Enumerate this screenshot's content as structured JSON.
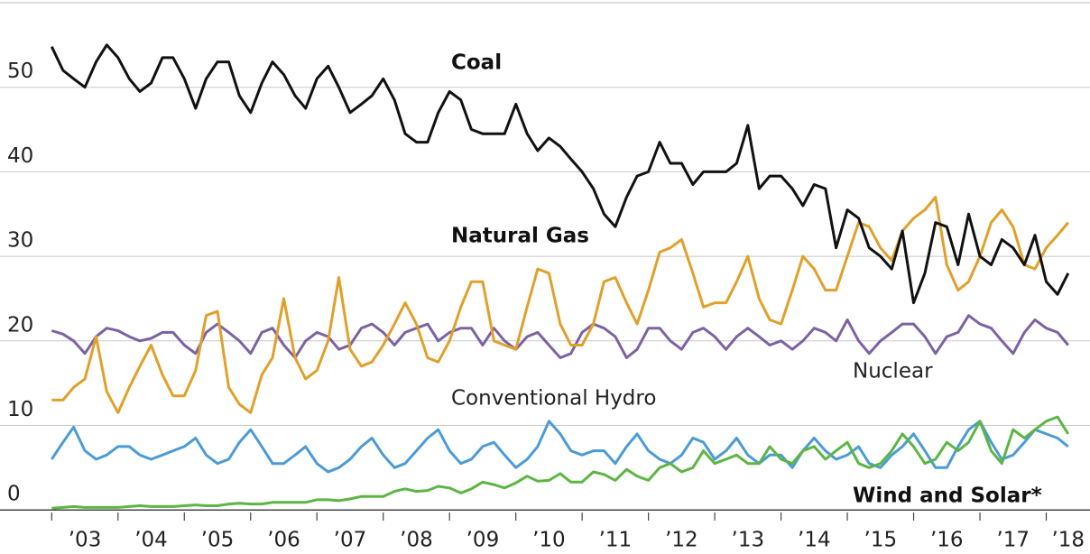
{
  "chart_data": {
    "type": "line",
    "x": [
      2003,
      2003.17,
      2003.33,
      2003.5,
      2003.67,
      2003.83,
      2004,
      2004.17,
      2004.33,
      2004.5,
      2004.67,
      2004.83,
      2005,
      2005.17,
      2005.33,
      2005.5,
      2005.67,
      2005.83,
      2006,
      2006.17,
      2006.33,
      2006.5,
      2006.67,
      2006.83,
      2007,
      2007.17,
      2007.33,
      2007.5,
      2007.67,
      2007.83,
      2008,
      2008.17,
      2008.33,
      2008.5,
      2008.67,
      2008.83,
      2009,
      2009.17,
      2009.33,
      2009.5,
      2009.67,
      2009.83,
      2010,
      2010.17,
      2010.33,
      2010.5,
      2010.67,
      2010.83,
      2011,
      2011.17,
      2011.33,
      2011.5,
      2011.67,
      2011.83,
      2012,
      2012.17,
      2012.33,
      2012.5,
      2012.67,
      2012.83,
      2013,
      2013.17,
      2013.33,
      2013.5,
      2013.67,
      2013.83,
      2014,
      2014.17,
      2014.33,
      2014.5,
      2014.67,
      2014.83,
      2015,
      2015.17,
      2015.33,
      2015.5,
      2015.67,
      2015.83,
      2016,
      2016.17,
      2016.33,
      2016.5,
      2016.67,
      2016.83,
      2017,
      2017.17,
      2017.33,
      2017.5,
      2017.67,
      2017.83,
      2018,
      2018.17,
      2018.33
    ],
    "series": [
      {
        "name": "Coal",
        "color": "#111111",
        "values": [
          54.8,
          52,
          51,
          50,
          53,
          55,
          53.5,
          51,
          49.5,
          50.5,
          53.5,
          53.5,
          51,
          47.5,
          51,
          53,
          53,
          49,
          47,
          50.5,
          53,
          51.5,
          49,
          47.5,
          51,
          52.5,
          50,
          47,
          48,
          49,
          51,
          48.5,
          44.5,
          43.5,
          43.5,
          47,
          49.5,
          48.5,
          45,
          44.5,
          44.5,
          44.5,
          48,
          44.5,
          42.5,
          44,
          43,
          41.5,
          40,
          38,
          35,
          33.5,
          37,
          39.5,
          40,
          43.5,
          41,
          41,
          38.5,
          40,
          40,
          40,
          41,
          45.5,
          38,
          39.5,
          39.5,
          38,
          36,
          38.5,
          38,
          31,
          35.5,
          34.5,
          31,
          30,
          28.5,
          33,
          24.5,
          28,
          34,
          33.5,
          29,
          35,
          30,
          29,
          32,
          31,
          29,
          32.5,
          27,
          25.5,
          28
        ]
      },
      {
        "name": "Natural Gas",
        "color": "#e0a02a",
        "values": [
          13,
          13,
          14.5,
          15.5,
          20.5,
          14,
          11.5,
          14.5,
          17,
          19.5,
          16,
          13.5,
          13.5,
          16.5,
          23,
          23.5,
          14.5,
          12.5,
          11.5,
          16,
          18,
          25,
          18,
          15.5,
          16.5,
          20,
          27.5,
          19,
          17,
          17.5,
          19.5,
          22,
          24.5,
          22,
          18,
          17.5,
          20,
          24,
          27,
          27,
          20,
          19.5,
          19,
          24,
          28.5,
          28,
          22,
          19.5,
          19.5,
          22,
          27,
          27.5,
          24.5,
          22,
          26,
          30.5,
          31,
          32,
          28,
          24,
          24.5,
          24.5,
          27,
          30,
          25,
          22.5,
          22,
          26,
          30,
          28.5,
          26,
          26,
          30,
          34,
          33.5,
          31,
          29.5,
          33,
          34.5,
          35.5,
          37,
          29,
          26,
          27,
          30,
          34,
          35.5,
          33.5,
          29,
          28.5,
          31,
          32.5,
          34
        ]
      },
      {
        "name": "Nuclear",
        "color": "#7b62a3",
        "values": [
          21.2,
          20.8,
          20,
          18.5,
          20.5,
          21.5,
          21.2,
          20.5,
          20,
          20.3,
          21,
          21,
          19.5,
          18.5,
          21,
          22,
          21,
          20,
          18.5,
          21,
          21.5,
          19.5,
          18,
          20,
          21,
          20.5,
          19,
          19.5,
          21.5,
          22,
          21,
          19.5,
          21,
          21.5,
          22,
          20,
          21,
          21.5,
          21.5,
          19.5,
          21.5,
          20,
          19,
          20.5,
          21,
          19.5,
          18,
          18.5,
          21,
          22,
          21.5,
          20.5,
          18,
          19,
          21.5,
          21.5,
          20,
          19,
          21,
          21.5,
          20.5,
          19,
          20.5,
          21.5,
          20.5,
          19.5,
          20,
          19,
          20,
          21.5,
          21,
          20,
          22.5,
          20,
          18.5,
          20,
          21,
          22,
          22,
          20.5,
          18.5,
          20.5,
          21,
          23,
          22,
          21.5,
          20,
          18.5,
          21,
          22.5,
          21.5,
          21,
          19.5
        ]
      },
      {
        "name": "Conventional Hydro",
        "color": "#4b9bd5",
        "values": [
          6,
          8,
          9.8,
          7,
          6,
          6.5,
          7.5,
          7.5,
          6.5,
          6,
          6.5,
          7,
          7.5,
          8.5,
          6.5,
          5.5,
          6,
          8,
          9.5,
          7.5,
          5.5,
          5.5,
          6.5,
          7.5,
          5.5,
          4.5,
          5,
          6,
          7.5,
          8.5,
          6.5,
          5,
          5.5,
          7,
          8.5,
          9.5,
          7,
          5.5,
          6,
          7.5,
          8,
          6.5,
          5,
          6,
          7.5,
          10.5,
          9,
          7,
          6.5,
          7,
          7,
          5.5,
          7.5,
          9,
          7,
          6,
          5.5,
          6.5,
          8.5,
          8,
          6,
          7,
          8.5,
          6.5,
          5.5,
          6.5,
          6.5,
          5,
          7,
          8.5,
          7,
          6,
          6.5,
          7.5,
          5.5,
          5,
          6.5,
          7.5,
          9,
          7,
          5,
          5,
          7.5,
          9.5,
          10.5,
          8,
          6,
          6.5,
          8,
          9.5,
          9,
          8.5,
          7.5
        ]
      },
      {
        "name": "Wind and Solar*",
        "color": "#5db544",
        "values": [
          0.2,
          0.3,
          0.4,
          0.3,
          0.3,
          0.3,
          0.3,
          0.4,
          0.5,
          0.4,
          0.4,
          0.4,
          0.5,
          0.6,
          0.5,
          0.5,
          0.7,
          0.8,
          0.7,
          0.7,
          0.9,
          0.9,
          0.9,
          0.9,
          1.2,
          1.2,
          1.1,
          1.3,
          1.6,
          1.6,
          1.6,
          2.2,
          2.5,
          2.2,
          2.3,
          2.8,
          2.6,
          2,
          2.5,
          3.3,
          3,
          2.6,
          3.2,
          4,
          3.4,
          3.5,
          4.3,
          3.3,
          3.3,
          4.5,
          4.2,
          3.5,
          4.8,
          4,
          3.5,
          5,
          5.5,
          4.5,
          5,
          7,
          5.5,
          6,
          6.5,
          5.5,
          5.5,
          7.5,
          6,
          5.5,
          7,
          7.5,
          6,
          7,
          8,
          5.5,
          5,
          5.5,
          7,
          9,
          7.5,
          5.5,
          6,
          8,
          7,
          8,
          10.5,
          7,
          5.5,
          9.5,
          8.5,
          9.5,
          10.5,
          11,
          9
        ]
      }
    ],
    "xlim": [
      2002.22,
      2018.66
    ],
    "xticks": [
      {
        "value": 2003,
        "label": "’03"
      },
      {
        "value": 2004,
        "label": "’04"
      },
      {
        "value": 2005,
        "label": "’05"
      },
      {
        "value": 2006,
        "label": "’06"
      },
      {
        "value": 2007,
        "label": "’07"
      },
      {
        "value": 2008,
        "label": "’08"
      },
      {
        "value": 2009,
        "label": "’09"
      },
      {
        "value": 2010,
        "label": "’10"
      },
      {
        "value": 2011,
        "label": "’11"
      },
      {
        "value": 2012,
        "label": "’12"
      },
      {
        "value": 2013,
        "label": "’13"
      },
      {
        "value": 2014,
        "label": "’14"
      },
      {
        "value": 2015,
        "label": "’15"
      },
      {
        "value": 2016,
        "label": "’16"
      },
      {
        "value": 2017,
        "label": "’17"
      },
      {
        "value": 2018,
        "label": "’18"
      }
    ],
    "ylim": [
      -0.3,
      60
    ],
    "yticks": [
      0,
      10,
      20,
      30,
      40,
      50
    ],
    "grid": true
  }
}
